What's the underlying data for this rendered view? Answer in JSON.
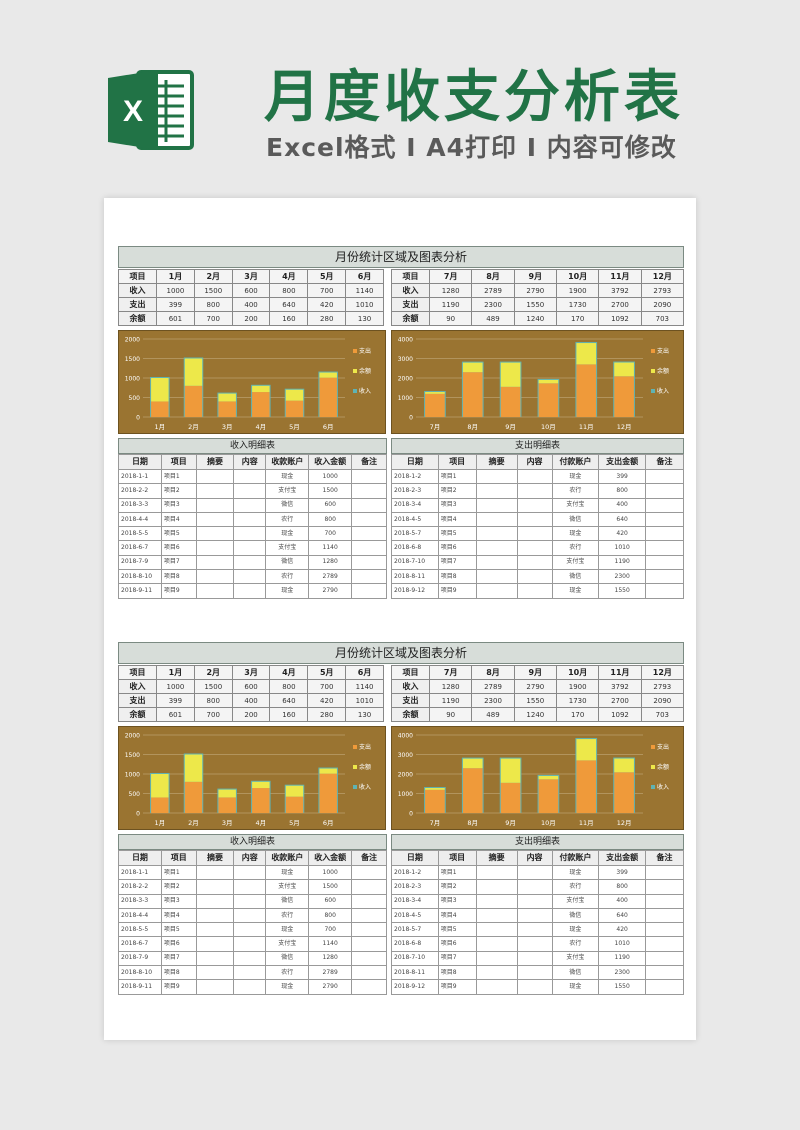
{
  "header": {
    "title": "月度收支分析表",
    "subtitle": "Excel格式 I A4打印 I 内容可修改",
    "logo_letter": "X"
  },
  "block_title": "月份统计区域及图表分析",
  "summary_left": {
    "headers": [
      "项目",
      "1月",
      "2月",
      "3月",
      "4月",
      "5月",
      "6月"
    ],
    "rows": [
      [
        "收入",
        "1000",
        "1500",
        "600",
        "800",
        "700",
        "1140"
      ],
      [
        "支出",
        "399",
        "800",
        "400",
        "640",
        "420",
        "1010"
      ],
      [
        "余额",
        "601",
        "700",
        "200",
        "160",
        "280",
        "130"
      ]
    ]
  },
  "summary_right": {
    "headers": [
      "项目",
      "7月",
      "8月",
      "9月",
      "10月",
      "11月",
      "12月"
    ],
    "rows": [
      [
        "收入",
        "1280",
        "2789",
        "2790",
        "1900",
        "3792",
        "2793"
      ],
      [
        "支出",
        "1190",
        "2300",
        "1550",
        "1730",
        "2700",
        "2090"
      ],
      [
        "余额",
        "90",
        "489",
        "1240",
        "170",
        "1092",
        "703"
      ]
    ]
  },
  "chart_data": [
    {
      "type": "bar",
      "categories": [
        "1月",
        "2月",
        "3月",
        "4月",
        "5月",
        "6月"
      ],
      "ylim": [
        0,
        2000
      ],
      "yticks": [
        "0",
        "500",
        "1000",
        "1500",
        "2000"
      ],
      "series": [
        {
          "name": "支出",
          "color": "#ef9a3a",
          "values": [
            399,
            800,
            400,
            640,
            420,
            1010
          ]
        },
        {
          "name": "余额",
          "color": "#ede84a",
          "values": [
            601,
            700,
            200,
            160,
            280,
            130
          ]
        },
        {
          "name": "收入",
          "color": "#5fb3b3",
          "values": [
            1000,
            1500,
            600,
            800,
            700,
            1140
          ]
        }
      ],
      "legend": "right",
      "grid": true
    },
    {
      "type": "bar",
      "categories": [
        "7月",
        "8月",
        "9月",
        "10月",
        "11月",
        "12月"
      ],
      "ylim": [
        0,
        4000
      ],
      "yticks": [
        "0",
        "1000",
        "2000",
        "3000",
        "4000"
      ],
      "series": [
        {
          "name": "支出",
          "color": "#ef9a3a",
          "values": [
            1190,
            2300,
            1550,
            1730,
            2700,
            2090
          ]
        },
        {
          "name": "余额",
          "color": "#ede84a",
          "values": [
            90,
            489,
            1240,
            170,
            1092,
            703
          ]
        },
        {
          "name": "收入",
          "color": "#5fb3b3",
          "values": [
            1280,
            2789,
            2790,
            1900,
            3792,
            2793
          ]
        }
      ],
      "legend": "right",
      "grid": true
    }
  ],
  "income_detail": {
    "title": "收入明细表",
    "headers": [
      "日期",
      "项目",
      "摘要",
      "内容",
      "收款账户",
      "收入金额",
      "备注"
    ],
    "rows": [
      [
        "2018-1-1",
        "项目1",
        "",
        "",
        "现金",
        "1000",
        ""
      ],
      [
        "2018-2-2",
        "项目2",
        "",
        "",
        "支付宝",
        "1500",
        ""
      ],
      [
        "2018-3-3",
        "项目3",
        "",
        "",
        "微信",
        "600",
        ""
      ],
      [
        "2018-4-4",
        "项目4",
        "",
        "",
        "农行",
        "800",
        ""
      ],
      [
        "2018-5-5",
        "项目5",
        "",
        "",
        "现金",
        "700",
        ""
      ],
      [
        "2018-6-7",
        "项目6",
        "",
        "",
        "支付宝",
        "1140",
        ""
      ],
      [
        "2018-7-9",
        "项目7",
        "",
        "",
        "微信",
        "1280",
        ""
      ],
      [
        "2018-8-10",
        "项目8",
        "",
        "",
        "农行",
        "2789",
        ""
      ],
      [
        "2018-9-11",
        "项目9",
        "",
        "",
        "现金",
        "2790",
        ""
      ]
    ]
  },
  "expense_detail": {
    "title": "支出明细表",
    "headers": [
      "日期",
      "项目",
      "摘要",
      "内容",
      "付款账户",
      "支出金额",
      "备注"
    ],
    "rows": [
      [
        "2018-1-2",
        "项目1",
        "",
        "",
        "现金",
        "399",
        ""
      ],
      [
        "2018-2-3",
        "项目2",
        "",
        "",
        "农行",
        "800",
        ""
      ],
      [
        "2018-3-4",
        "项目3",
        "",
        "",
        "支付宝",
        "400",
        ""
      ],
      [
        "2018-4-5",
        "项目4",
        "",
        "",
        "微信",
        "640",
        ""
      ],
      [
        "2018-5-7",
        "项目5",
        "",
        "",
        "现金",
        "420",
        ""
      ],
      [
        "2018-6-8",
        "项目6",
        "",
        "",
        "农行",
        "1010",
        ""
      ],
      [
        "2018-7-10",
        "项目7",
        "",
        "",
        "支付宝",
        "1190",
        ""
      ],
      [
        "2018-8-11",
        "项目8",
        "",
        "",
        "微信",
        "2300",
        ""
      ],
      [
        "2018-9-12",
        "项目9",
        "",
        "",
        "现金",
        "1550",
        ""
      ]
    ]
  },
  "colors": {
    "brand_green": "#217346",
    "chart_bg": "#9a7431",
    "header_fill": "#d7ddd9"
  }
}
